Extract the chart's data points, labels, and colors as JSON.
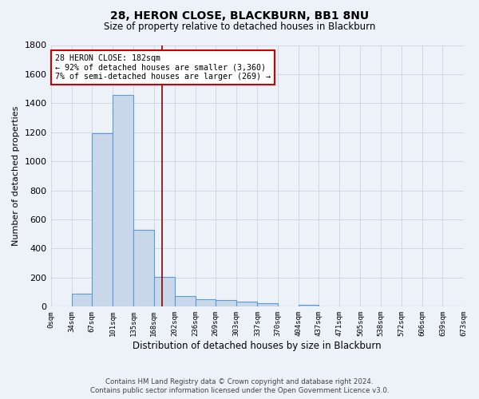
{
  "title1": "28, HERON CLOSE, BLACKBURN, BB1 8NU",
  "title2": "Size of property relative to detached houses in Blackburn",
  "xlabel": "Distribution of detached houses by size in Blackburn",
  "ylabel": "Number of detached properties",
  "footer1": "Contains HM Land Registry data © Crown copyright and database right 2024.",
  "footer2": "Contains public sector information licensed under the Open Government Licence v3.0.",
  "bin_labels": [
    "0sqm",
    "34sqm",
    "67sqm",
    "101sqm",
    "135sqm",
    "168sqm",
    "202sqm",
    "236sqm",
    "269sqm",
    "303sqm",
    "337sqm",
    "370sqm",
    "404sqm",
    "437sqm",
    "471sqm",
    "505sqm",
    "538sqm",
    "572sqm",
    "606sqm",
    "639sqm",
    "673sqm"
  ],
  "bin_edges": [
    0,
    34,
    67,
    101,
    135,
    168,
    202,
    236,
    269,
    303,
    337,
    370,
    404,
    437,
    471,
    505,
    538,
    572,
    606,
    639,
    673
  ],
  "bar_heights": [
    0,
    90,
    1195,
    1455,
    530,
    205,
    75,
    50,
    45,
    35,
    25,
    0,
    15,
    0,
    0,
    0,
    0,
    0,
    0,
    0
  ],
  "bar_color": "#c8d8ea",
  "bar_edge_color": "#5b9bd5",
  "background_color": "#edf1f8",
  "grid_color": "#d0d8e8",
  "annotation_text": "28 HERON CLOSE: 182sqm\n← 92% of detached houses are smaller (3,360)\n7% of semi-detached houses are larger (269) →",
  "annotation_box_color": "white",
  "annotation_box_edge": "#cc0000",
  "vline_color": "#8b0000",
  "property_size": 182,
  "ylim": [
    0,
    1800
  ],
  "yticks": [
    0,
    200,
    400,
    600,
    800,
    1000,
    1200,
    1400,
    1600,
    1800
  ]
}
